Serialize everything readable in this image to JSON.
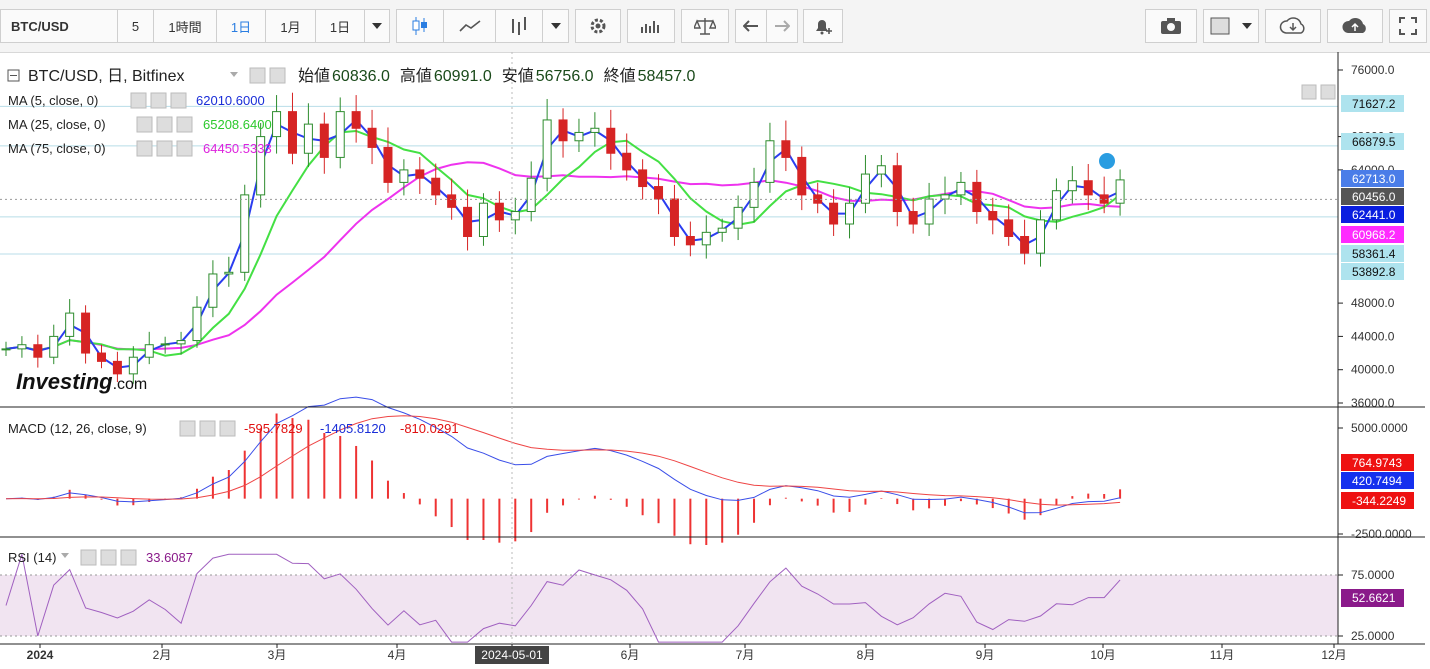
{
  "toolbar": {
    "symbol": "BTC/USD",
    "timeframes": [
      "5",
      "1時間",
      "1日",
      "1月",
      "1日"
    ],
    "active_timeframe": "1日"
  },
  "legend": {
    "title": "BTC/USD, 日, Bitfinex",
    "open_label": "始値",
    "open": "60836.0",
    "high_label": "高値",
    "high": "60991.0",
    "low_label": "安値",
    "low": "56756.0",
    "close_label": "終値",
    "close": "58457.0",
    "ma5_label": "MA (5, close, 0)",
    "ma5_value": "62010.6000",
    "ma25_label": "MA (25, close, 0)",
    "ma25_value": "65208.6400",
    "ma75_label": "MA (75, close, 0)",
    "ma75_value": "64450.5333",
    "macd_label": "MACD (12, 26, close, 9)",
    "macd_v1": "-595.7829",
    "macd_v2": "-1405.8120",
    "macd_v3": "-810.0291",
    "rsi_label": "RSI (14)",
    "rsi_value": "33.6087"
  },
  "watermark": {
    "brand": "Investing",
    "suffix": ".com"
  },
  "chart_data": {
    "type": "candlestick",
    "x_ticks": [
      "2024",
      "2月",
      "3月",
      "4月",
      "2024-05-01",
      "6月",
      "7月",
      "8月",
      "9月",
      "10月",
      "11月",
      "12月"
    ],
    "price_axis": {
      "ticks": [
        "76000.0",
        "68000.0",
        "64000.0",
        "48000.0",
        "44000.0",
        "40000.0",
        "36000.0"
      ],
      "range": [
        36000,
        76000
      ]
    },
    "price_labels": [
      {
        "value": "71627.2",
        "color": "#aee3ee"
      },
      {
        "value": "66879.5",
        "color": "#aee3ee"
      },
      {
        "value": "62713.0",
        "color": "#4a7de8"
      },
      {
        "value": "60456.0",
        "color": "#555555"
      },
      {
        "value": "62441.0",
        "color": "#0a1ee0"
      },
      {
        "value": "60968.2",
        "color": "#ff2bff"
      },
      {
        "value": "58361.4",
        "color": "#aee3ee"
      },
      {
        "value": "53892.8",
        "color": "#aee3ee"
      }
    ],
    "ma_colors": {
      "ma5": "#2b3df0",
      "ma25": "#44e044",
      "ma75": "#ee33ee"
    },
    "candle_colors": {
      "up": "#2d8c2d",
      "down": "#d62424"
    },
    "macd_axis": {
      "ticks": [
        "5000.0000",
        "-2500.0000"
      ],
      "range": [
        -2500,
        5000
      ]
    },
    "macd_labels": [
      {
        "value": "764.9743",
        "color": "#ee1111"
      },
      {
        "value": "420.7494",
        "color": "#1530ee"
      },
      {
        "value": "-344.2249",
        "color": "#ee1111"
      }
    ],
    "rsi_axis": {
      "ticks": [
        "75.0000",
        "25.0000"
      ],
      "range": [
        15,
        100
      ]
    },
    "rsi_label": {
      "value": "52.6621",
      "color": "#8a1a8a"
    },
    "closes": [
      42500,
      43000,
      41500,
      44000,
      46800,
      42000,
      41000,
      39500,
      41500,
      43000,
      43100,
      43500,
      47500,
      51500,
      51700,
      61000,
      68000,
      71000,
      66000,
      69500,
      65500,
      71000,
      69000,
      66700,
      62500,
      64000,
      63000,
      61000,
      59500,
      56000,
      60000,
      58000,
      59000,
      63000,
      70000,
      67500,
      68500,
      69000,
      66000,
      64000,
      62000,
      60500,
      56000,
      55000,
      56500,
      57000,
      59500,
      62500,
      67500,
      65500,
      61000,
      60000,
      57500,
      60000,
      63500,
      64500,
      59000,
      57500,
      60500,
      61000,
      62500,
      59000,
      58000,
      56000,
      54000,
      58000,
      61500,
      62700,
      61000,
      60000,
      62800
    ],
    "volume_pattern": "n/a"
  }
}
